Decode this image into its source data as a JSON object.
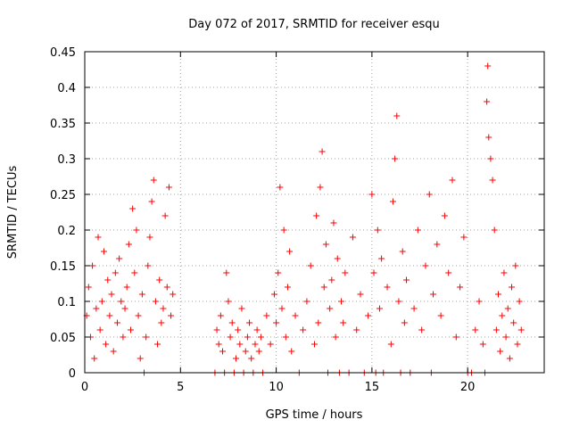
{
  "chart_data": {
    "type": "scatter",
    "title": "Day 072 of 2017, SRMTID for receiver esqu",
    "xlabel": "GPS time / hours",
    "ylabel": "SRMTID / TECUs",
    "xlim": [
      0,
      24
    ],
    "ylim": [
      0,
      0.45
    ],
    "x_ticks": [
      0,
      5,
      10,
      15,
      20
    ],
    "x_tick_labels": [
      "0",
      "5",
      "10",
      "15",
      "20"
    ],
    "y_ticks": [
      0,
      0.05,
      0.1,
      0.15,
      0.2,
      0.25,
      0.3,
      0.35,
      0.4,
      0.45
    ],
    "y_tick_labels": [
      "0",
      "0.05",
      "0.1",
      "0.15",
      "0.2",
      "0.25",
      "0.3",
      "0.35",
      "0.4",
      "0.45"
    ],
    "grid": true,
    "marker": "plus",
    "color": "#ff0000",
    "series": [
      {
        "name": "SRMTID",
        "points": [
          [
            0.1,
            0.08
          ],
          [
            0.2,
            0.12
          ],
          [
            0.3,
            0.05
          ],
          [
            0.4,
            0.15
          ],
          [
            0.5,
            0.02
          ],
          [
            0.6,
            0.09
          ],
          [
            0.7,
            0.19
          ],
          [
            0.8,
            0.06
          ],
          [
            0.9,
            0.1
          ],
          [
            1.0,
            0.17
          ],
          [
            1.1,
            0.04
          ],
          [
            1.2,
            0.13
          ],
          [
            1.3,
            0.08
          ],
          [
            1.4,
            0.11
          ],
          [
            1.5,
            0.03
          ],
          [
            1.6,
            0.14
          ],
          [
            1.7,
            0.07
          ],
          [
            1.8,
            0.16
          ],
          [
            1.9,
            0.1
          ],
          [
            2.0,
            0.05
          ],
          [
            2.1,
            0.09
          ],
          [
            2.2,
            0.12
          ],
          [
            2.3,
            0.18
          ],
          [
            2.4,
            0.06
          ],
          [
            2.5,
            0.23
          ],
          [
            2.6,
            0.14
          ],
          [
            2.7,
            0.2
          ],
          [
            2.8,
            0.08
          ],
          [
            2.9,
            0.02
          ],
          [
            3.0,
            0.11
          ],
          [
            3.1,
            0.0
          ],
          [
            3.2,
            0.05
          ],
          [
            3.3,
            0.15
          ],
          [
            3.4,
            0.19
          ],
          [
            3.5,
            0.24
          ],
          [
            3.6,
            0.27
          ],
          [
            3.7,
            0.1
          ],
          [
            3.8,
            0.04
          ],
          [
            3.9,
            0.13
          ],
          [
            4.0,
            0.07
          ],
          [
            4.1,
            0.09
          ],
          [
            4.2,
            0.22
          ],
          [
            4.3,
            0.12
          ],
          [
            4.4,
            0.26
          ],
          [
            4.5,
            0.08
          ],
          [
            4.6,
            0.11
          ],
          [
            6.8,
            0.0
          ],
          [
            6.9,
            0.06
          ],
          [
            7.0,
            0.04
          ],
          [
            7.1,
            0.08
          ],
          [
            7.2,
            0.03
          ],
          [
            7.3,
            0.0
          ],
          [
            7.4,
            0.14
          ],
          [
            7.5,
            0.1
          ],
          [
            7.6,
            0.05
          ],
          [
            7.7,
            0.07
          ],
          [
            7.8,
            0.0
          ],
          [
            7.9,
            0.02
          ],
          [
            8.0,
            0.06
          ],
          [
            8.1,
            0.04
          ],
          [
            8.2,
            0.09
          ],
          [
            8.3,
            0.0
          ],
          [
            8.4,
            0.03
          ],
          [
            8.5,
            0.05
          ],
          [
            8.6,
            0.07
          ],
          [
            8.7,
            0.02
          ],
          [
            8.8,
            0.0
          ],
          [
            8.9,
            0.04
          ],
          [
            9.0,
            0.06
          ],
          [
            9.1,
            0.03
          ],
          [
            9.2,
            0.05
          ],
          [
            9.3,
            0.0
          ],
          [
            9.5,
            0.08
          ],
          [
            9.7,
            0.04
          ],
          [
            9.9,
            0.11
          ],
          [
            10.0,
            0.07
          ],
          [
            10.1,
            0.14
          ],
          [
            10.2,
            0.26
          ],
          [
            10.3,
            0.09
          ],
          [
            10.4,
            0.2
          ],
          [
            10.5,
            0.05
          ],
          [
            10.6,
            0.12
          ],
          [
            10.7,
            0.17
          ],
          [
            10.8,
            0.03
          ],
          [
            11.0,
            0.08
          ],
          [
            11.2,
            0.0
          ],
          [
            11.4,
            0.06
          ],
          [
            11.6,
            0.1
          ],
          [
            11.8,
            0.15
          ],
          [
            12.0,
            0.04
          ],
          [
            12.1,
            0.22
          ],
          [
            12.2,
            0.07
          ],
          [
            12.3,
            0.26
          ],
          [
            12.4,
            0.31
          ],
          [
            12.5,
            0.12
          ],
          [
            12.6,
            0.18
          ],
          [
            12.7,
            0.0
          ],
          [
            12.8,
            0.09
          ],
          [
            12.9,
            0.13
          ],
          [
            13.0,
            0.21
          ],
          [
            13.1,
            0.05
          ],
          [
            13.2,
            0.16
          ],
          [
            13.3,
            0.0
          ],
          [
            13.4,
            0.1
          ],
          [
            13.5,
            0.07
          ],
          [
            13.6,
            0.14
          ],
          [
            13.8,
            0.0
          ],
          [
            14.0,
            0.19
          ],
          [
            14.2,
            0.06
          ],
          [
            14.4,
            0.11
          ],
          [
            14.6,
            0.0
          ],
          [
            14.8,
            0.08
          ],
          [
            15.0,
            0.25
          ],
          [
            15.1,
            0.14
          ],
          [
            15.2,
            0.0
          ],
          [
            15.3,
            0.2
          ],
          [
            15.4,
            0.09
          ],
          [
            15.5,
            0.16
          ],
          [
            15.6,
            0.0
          ],
          [
            15.8,
            0.12
          ],
          [
            16.0,
            0.04
          ],
          [
            16.1,
            0.24
          ],
          [
            16.2,
            0.3
          ],
          [
            16.3,
            0.36
          ],
          [
            16.4,
            0.1
          ],
          [
            16.5,
            0.0
          ],
          [
            16.6,
            0.17
          ],
          [
            16.7,
            0.07
          ],
          [
            16.8,
            0.13
          ],
          [
            17.0,
            0.0
          ],
          [
            17.2,
            0.09
          ],
          [
            17.4,
            0.2
          ],
          [
            17.6,
            0.06
          ],
          [
            17.8,
            0.15
          ],
          [
            18.0,
            0.25
          ],
          [
            18.1,
            0.0
          ],
          [
            18.2,
            0.11
          ],
          [
            18.4,
            0.18
          ],
          [
            18.6,
            0.08
          ],
          [
            18.8,
            0.22
          ],
          [
            19.0,
            0.14
          ],
          [
            19.2,
            0.27
          ],
          [
            19.4,
            0.05
          ],
          [
            19.6,
            0.12
          ],
          [
            19.8,
            0.19
          ],
          [
            20.0,
            0.0
          ],
          [
            20.2,
            0.0
          ],
          [
            20.4,
            0.06
          ],
          [
            20.6,
            0.1
          ],
          [
            20.8,
            0.04
          ],
          [
            20.9,
            0.0
          ],
          [
            21.0,
            0.38
          ],
          [
            21.05,
            0.43
          ],
          [
            21.1,
            0.33
          ],
          [
            21.2,
            0.3
          ],
          [
            21.3,
            0.27
          ],
          [
            21.4,
            0.2
          ],
          [
            21.5,
            0.06
          ],
          [
            21.6,
            0.11
          ],
          [
            21.7,
            0.03
          ],
          [
            21.8,
            0.08
          ],
          [
            21.9,
            0.14
          ],
          [
            22.0,
            0.05
          ],
          [
            22.1,
            0.09
          ],
          [
            22.2,
            0.02
          ],
          [
            22.3,
            0.12
          ],
          [
            22.4,
            0.07
          ],
          [
            22.5,
            0.15
          ],
          [
            22.6,
            0.04
          ],
          [
            22.7,
            0.1
          ],
          [
            22.8,
            0.06
          ]
        ]
      }
    ]
  }
}
